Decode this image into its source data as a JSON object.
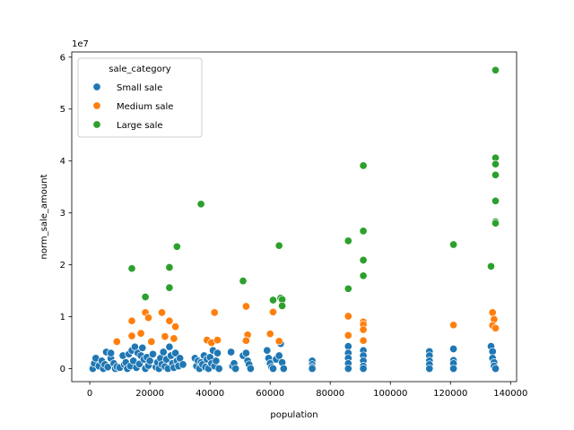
{
  "chart_data": {
    "type": "scatter",
    "xlabel": "population",
    "ylabel": "norm_sale_amount",
    "y_offset_label": "1e7",
    "xlim": [
      -6000,
      142000
    ],
    "ylim": [
      -2500000,
      61000000
    ],
    "x_ticks": [
      0,
      20000,
      40000,
      60000,
      80000,
      100000,
      120000,
      140000
    ],
    "y_ticks": [
      0,
      10000000,
      20000000,
      30000000,
      40000000,
      50000000,
      60000000
    ],
    "x_tick_labels": [
      "0",
      "20000",
      "40000",
      "60000",
      "80000",
      "100000",
      "120000",
      "140000"
    ],
    "y_tick_labels": [
      "0",
      "1",
      "2",
      "3",
      "4",
      "5",
      "6"
    ],
    "grid": false,
    "legend": {
      "title": "sale_category",
      "position": "top-left",
      "entries": [
        "Small sale",
        "Medium sale",
        "Large sale"
      ]
    },
    "series": [
      {
        "name": "Small sale",
        "color": "#1f77b4",
        "points": [
          [
            1000,
            0
          ],
          [
            1500,
            1000000
          ],
          [
            2000,
            2000000
          ],
          [
            3000,
            500000
          ],
          [
            4000,
            1500000
          ],
          [
            4500,
            0
          ],
          [
            5000,
            800000
          ],
          [
            5500,
            3200000
          ],
          [
            6000,
            300000
          ],
          [
            7000,
            2000000
          ],
          [
            7000,
            3000000
          ],
          [
            8000,
            1000000
          ],
          [
            8500,
            0
          ],
          [
            9000,
            400000
          ],
          [
            10000,
            200000
          ],
          [
            11000,
            2500000
          ],
          [
            11500,
            800000
          ],
          [
            12000,
            1200000
          ],
          [
            12500,
            0
          ],
          [
            13000,
            2800000
          ],
          [
            13500,
            500000
          ],
          [
            14000,
            3500000
          ],
          [
            14500,
            1500000
          ],
          [
            15000,
            4200000
          ],
          [
            15500,
            200000
          ],
          [
            16000,
            3000000
          ],
          [
            16500,
            900000
          ],
          [
            17000,
            2500000
          ],
          [
            17500,
            4000000
          ],
          [
            18000,
            1800000
          ],
          [
            18500,
            0
          ],
          [
            19000,
            2200000
          ],
          [
            19500,
            600000
          ],
          [
            20000,
            1500000
          ],
          [
            21000,
            2800000
          ],
          [
            22000,
            300000
          ],
          [
            22500,
            1200000
          ],
          [
            23000,
            0
          ],
          [
            23500,
            2000000
          ],
          [
            24000,
            800000
          ],
          [
            24500,
            3200000
          ],
          [
            25000,
            400000
          ],
          [
            25500,
            1800000
          ],
          [
            26000,
            0
          ],
          [
            26500,
            4200000
          ],
          [
            27000,
            2500000
          ],
          [
            27500,
            1000000
          ],
          [
            28000,
            200000
          ],
          [
            28500,
            3000000
          ],
          [
            29000,
            1500000
          ],
          [
            29500,
            500000
          ],
          [
            30000,
            2000000
          ],
          [
            31000,
            800000
          ],
          [
            35000,
            2000000
          ],
          [
            35500,
            500000
          ],
          [
            36000,
            1500000
          ],
          [
            36500,
            0
          ],
          [
            37000,
            1200000
          ],
          [
            37500,
            800000
          ],
          [
            38000,
            2500000
          ],
          [
            38500,
            300000
          ],
          [
            39000,
            1800000
          ],
          [
            39500,
            0
          ],
          [
            40000,
            2200000
          ],
          [
            40500,
            1000000
          ],
          [
            41000,
            3500000
          ],
          [
            41500,
            500000
          ],
          [
            42000,
            1500000
          ],
          [
            42500,
            3000000
          ],
          [
            43000,
            0
          ],
          [
            47000,
            3200000
          ],
          [
            47500,
            500000
          ],
          [
            48000,
            1000000
          ],
          [
            48500,
            0
          ],
          [
            51000,
            2500000
          ],
          [
            52000,
            3000000
          ],
          [
            52500,
            1500000
          ],
          [
            53000,
            800000
          ],
          [
            53500,
            0
          ],
          [
            59000,
            3500000
          ],
          [
            59500,
            2000000
          ],
          [
            60000,
            1000000
          ],
          [
            60500,
            300000
          ],
          [
            61000,
            0
          ],
          [
            62000,
            1800000
          ],
          [
            63000,
            2500000
          ],
          [
            63500,
            4800000
          ],
          [
            64000,
            1200000
          ],
          [
            64500,
            0
          ],
          [
            74000,
            1500000
          ],
          [
            74000,
            800000
          ],
          [
            74000,
            300000
          ],
          [
            74000,
            0
          ],
          [
            86000,
            4300000
          ],
          [
            86000,
            3000000
          ],
          [
            86000,
            2000000
          ],
          [
            86000,
            1000000
          ],
          [
            86000,
            0
          ],
          [
            91000,
            3500000
          ],
          [
            91000,
            2500000
          ],
          [
            91000,
            1500000
          ],
          [
            91000,
            500000
          ],
          [
            91000,
            0
          ],
          [
            113000,
            3300000
          ],
          [
            113000,
            2500000
          ],
          [
            113000,
            1500000
          ],
          [
            113000,
            800000
          ],
          [
            113000,
            0
          ],
          [
            121000,
            3800000
          ],
          [
            121000,
            1600000
          ],
          [
            121000,
            1000000
          ],
          [
            121000,
            0
          ],
          [
            133500,
            4300000
          ],
          [
            134000,
            3300000
          ],
          [
            134000,
            2000000
          ],
          [
            134500,
            1200000
          ],
          [
            134500,
            500000
          ],
          [
            135000,
            0
          ]
        ]
      },
      {
        "name": "Medium sale",
        "color": "#ff7f0e",
        "points": [
          [
            9000,
            5200000
          ],
          [
            14000,
            9200000
          ],
          [
            14000,
            6300000
          ],
          [
            17000,
            6800000
          ],
          [
            18500,
            10800000
          ],
          [
            19500,
            9800000
          ],
          [
            20500,
            5200000
          ],
          [
            24000,
            10800000
          ],
          [
            25000,
            6200000
          ],
          [
            26500,
            9200000
          ],
          [
            28000,
            5800000
          ],
          [
            28500,
            8100000
          ],
          [
            39000,
            5500000
          ],
          [
            40500,
            5000000
          ],
          [
            41500,
            10800000
          ],
          [
            42500,
            5500000
          ],
          [
            52000,
            12000000
          ],
          [
            52500,
            6500000
          ],
          [
            52000,
            5400000
          ],
          [
            60000,
            6700000
          ],
          [
            61000,
            10900000
          ],
          [
            63000,
            5300000
          ],
          [
            86000,
            10100000
          ],
          [
            86000,
            6400000
          ],
          [
            91000,
            9000000
          ],
          [
            91000,
            8500000
          ],
          [
            91000,
            7500000
          ],
          [
            91000,
            5400000
          ],
          [
            121000,
            8400000
          ],
          [
            134000,
            10800000
          ],
          [
            134500,
            9500000
          ],
          [
            134000,
            8300000
          ],
          [
            135000,
            7800000
          ]
        ]
      },
      {
        "name": "Large sale",
        "color": "#2ca02c",
        "points": [
          [
            14000,
            19300000
          ],
          [
            18500,
            13800000
          ],
          [
            26500,
            19500000
          ],
          [
            26500,
            15600000
          ],
          [
            29000,
            23500000
          ],
          [
            37000,
            31700000
          ],
          [
            51000,
            16900000
          ],
          [
            61000,
            13200000
          ],
          [
            63000,
            23700000
          ],
          [
            63500,
            13600000
          ],
          [
            64000,
            13300000
          ],
          [
            64000,
            12100000
          ],
          [
            86000,
            24600000
          ],
          [
            86000,
            15400000
          ],
          [
            91000,
            39100000
          ],
          [
            91000,
            26500000
          ],
          [
            91000,
            20900000
          ],
          [
            91000,
            17900000
          ],
          [
            121000,
            23900000
          ],
          [
            133500,
            19700000
          ],
          [
            135000,
            57500000
          ],
          [
            135000,
            40600000
          ],
          [
            135000,
            39400000
          ],
          [
            135000,
            37300000
          ],
          [
            135000,
            32300000
          ],
          [
            135000,
            28300000
          ],
          [
            135000,
            28000000
          ]
        ]
      }
    ]
  }
}
